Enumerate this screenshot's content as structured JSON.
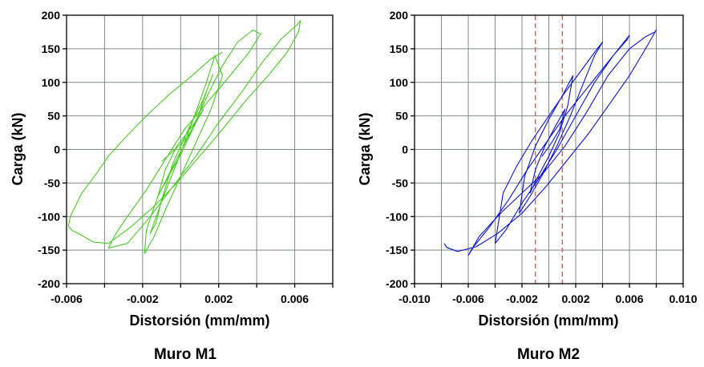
{
  "chart_data": [
    {
      "type": "line",
      "title": "Muro M1",
      "xlabel": "Distorsión (mm/mm)",
      "ylabel": "Carga (kN)",
      "xlim": [
        -0.006,
        0.008
      ],
      "ylim": [
        -200,
        200
      ],
      "x_ticks": [
        -0.006,
        -0.002,
        0.002,
        0.006
      ],
      "x_tick_labels": [
        "-0.006",
        "-0.002",
        "0.002",
        "0.006"
      ],
      "x_grid": [
        -0.006,
        -0.004,
        -0.002,
        0.0,
        0.002,
        0.004,
        0.006,
        0.008
      ],
      "y_ticks": [
        -200,
        -150,
        -100,
        -50,
        0,
        50,
        100,
        150,
        200
      ],
      "y_tick_labels": [
        "-200",
        "-150",
        "-100",
        "-50",
        "0",
        "50",
        "100",
        "150",
        "200"
      ],
      "grid": true,
      "series": [
        {
          "color": "#46cc1e",
          "x": [
            -0.001,
            -0.0005,
            0.0,
            0.0005,
            0.0012,
            0.0005,
            -0.0002,
            -0.0008,
            -0.0012,
            -0.0006,
            0.0,
            0.0008,
            0.0014,
            0.0017,
            0.0012,
            0.0004,
            -0.0004,
            -0.001,
            -0.0013,
            -0.0016,
            -0.0009,
            -0.0002,
            0.0006,
            0.0013,
            0.0018,
            0.0022,
            0.0016,
            0.0008,
            0.0,
            -0.0008,
            -0.0014,
            -0.0019,
            -0.0018,
            -0.0012,
            -0.0004,
            0.0006,
            0.0014,
            0.0022,
            0.003,
            0.0038,
            0.0042,
            0.0036,
            0.0026,
            0.0014,
            0.0002,
            -0.0008,
            -0.0018,
            -0.0028,
            -0.0034,
            -0.0038,
            -0.0028,
            -0.0016,
            -0.0004,
            0.0008,
            0.002,
            0.0032,
            0.0043,
            0.0053,
            0.0061,
            0.0063,
            0.0062,
            0.0056,
            0.0046,
            0.0034,
            0.0022,
            0.001,
            -0.0002,
            -0.0014,
            -0.0026,
            -0.0038,
            -0.0046,
            -0.0052,
            -0.0057,
            -0.0059,
            -0.0058,
            -0.0052,
            -0.0044,
            -0.0038,
            -0.003,
            -0.0018,
            -0.0006,
            0.0006,
            0.0016,
            0.0022
          ],
          "y": [
            -18,
            -5,
            8,
            25,
            60,
            30,
            5,
            -30,
            -70,
            -38,
            -8,
            40,
            90,
            112,
            75,
            30,
            -20,
            -75,
            -110,
            -125,
            -70,
            -20,
            40,
            95,
            140,
            110,
            60,
            10,
            -40,
            -90,
            -130,
            -155,
            -120,
            -70,
            -25,
            30,
            80,
            125,
            160,
            178,
            172,
            145,
            110,
            70,
            30,
            -15,
            -60,
            -100,
            -125,
            -147,
            -140,
            -100,
            -55,
            -10,
            40,
            85,
            130,
            165,
            185,
            192,
            175,
            145,
            110,
            72,
            30,
            -10,
            -50,
            -85,
            -115,
            -140,
            -138,
            -128,
            -121,
            -114,
            -100,
            -65,
            -35,
            -10,
            15,
            50,
            82,
            110,
            135,
            145
          ]
        }
      ]
    },
    {
      "type": "line",
      "title": "Muro M2",
      "xlabel": "Distorsión (mm/mm)",
      "ylabel": "Carga (kN)",
      "xlim": [
        -0.01,
        0.01
      ],
      "ylim": [
        -200,
        200
      ],
      "x_ticks": [
        -0.01,
        -0.006,
        -0.002,
        0.002,
        0.006,
        0.01
      ],
      "x_tick_labels": [
        "-0.010",
        "-0.006",
        "-0.002",
        "0.002",
        "0.006",
        "0.010"
      ],
      "x_grid": [
        -0.01,
        -0.008,
        -0.006,
        -0.004,
        -0.002,
        0.0,
        0.002,
        0.004,
        0.006,
        0.008,
        0.01
      ],
      "y_ticks": [
        -200,
        -150,
        -100,
        -50,
        0,
        50,
        100,
        150,
        200
      ],
      "y_tick_labels": [
        "-200",
        "-150",
        "-100",
        "-50",
        "0",
        "50",
        "100",
        "150",
        "200"
      ],
      "grid": true,
      "reference_lines": {
        "x": [
          -0.001,
          0.001
        ],
        "color": "#e8474f",
        "style": "dashed"
      },
      "series": [
        {
          "color": "#0a12d0",
          "x": [
            -0.0005,
            0.0002,
            0.0008,
            0.0012,
            0.0005,
            -0.0003,
            -0.001,
            -0.0014,
            -0.0008,
            0.0,
            0.0008,
            0.0014,
            0.0018,
            0.001,
            0.0,
            -0.001,
            -0.0018,
            -0.0022,
            -0.0014,
            -0.0004,
            0.0006,
            0.0016,
            0.0026,
            0.0034,
            0.004,
            0.0036,
            0.0025,
            0.0012,
            0.0,
            -0.0012,
            -0.0024,
            -0.0034,
            -0.004,
            -0.0032,
            -0.002,
            -0.0008,
            0.0006,
            0.002,
            0.0034,
            0.0048,
            0.0058,
            0.006,
            0.0052,
            0.004,
            0.0026,
            0.0012,
            -0.0002,
            -0.0016,
            -0.003,
            -0.0044,
            -0.0056,
            -0.006,
            -0.0052,
            -0.0036,
            -0.002,
            -0.0004,
            0.0012,
            0.0028,
            0.0044,
            0.006,
            0.0072,
            0.0079,
            0.008,
            0.0072,
            0.006,
            0.0046,
            0.003,
            0.0014,
            -0.0002,
            -0.002,
            -0.0038,
            -0.0054,
            -0.0068,
            -0.0076,
            -0.0078
          ],
          "y": [
            -10,
            10,
            30,
            60,
            35,
            5,
            -30,
            -65,
            -40,
            -10,
            25,
            65,
            110,
            80,
            45,
            5,
            -40,
            -95,
            -70,
            -35,
            5,
            50,
            100,
            140,
            160,
            150,
            120,
            85,
            50,
            15,
            -25,
            -65,
            -140,
            -120,
            -80,
            -45,
            0,
            50,
            100,
            140,
            163,
            170,
            150,
            120,
            85,
            50,
            10,
            -30,
            -75,
            -115,
            -145,
            -158,
            -130,
            -95,
            -65,
            -35,
            5,
            55,
            110,
            150,
            168,
            175,
            178,
            150,
            110,
            70,
            25,
            -15,
            -55,
            -95,
            -125,
            -145,
            -152,
            -146,
            -140
          ]
        }
      ]
    }
  ]
}
